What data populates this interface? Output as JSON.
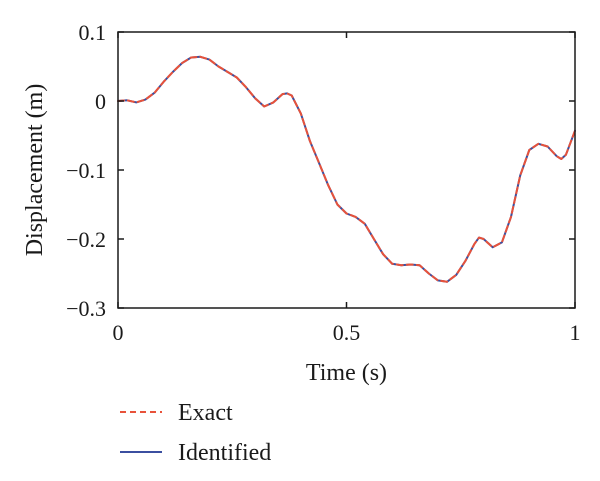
{
  "chart_data": {
    "type": "line",
    "xlabel": "Time (s)",
    "ylabel": "Displacement (m)",
    "xlim": [
      0,
      1
    ],
    "ylim": [
      -0.3,
      0.1
    ],
    "xticks": [
      0,
      0.5,
      1
    ],
    "xtick_labels": [
      "0",
      "0.5",
      "1"
    ],
    "yticks": [
      0.1,
      0,
      -0.1,
      -0.2,
      -0.3
    ],
    "ytick_labels": [
      "0.1",
      "0",
      "−0.1",
      "−0.2",
      "−0.3"
    ],
    "grid": false,
    "legend_position": "bottom",
    "series": [
      {
        "name": "Exact",
        "style": "dashed",
        "color": "#e8523a",
        "x": [
          0,
          0.02,
          0.04,
          0.06,
          0.08,
          0.1,
          0.12,
          0.14,
          0.16,
          0.18,
          0.2,
          0.22,
          0.24,
          0.26,
          0.28,
          0.3,
          0.32,
          0.34,
          0.36,
          0.37,
          0.38,
          0.4,
          0.42,
          0.44,
          0.46,
          0.48,
          0.5,
          0.52,
          0.54,
          0.56,
          0.58,
          0.6,
          0.62,
          0.64,
          0.66,
          0.68,
          0.7,
          0.72,
          0.74,
          0.76,
          0.78,
          0.79,
          0.8,
          0.82,
          0.84,
          0.86,
          0.88,
          0.9,
          0.92,
          0.94,
          0.96,
          0.97,
          0.98,
          1.0
        ],
        "y": [
          0.0,
          0.001,
          -0.002,
          0.002,
          0.012,
          0.028,
          0.042,
          0.055,
          0.063,
          0.064,
          0.06,
          0.05,
          0.042,
          0.034,
          0.02,
          0.004,
          -0.008,
          -0.002,
          0.01,
          0.011,
          0.008,
          -0.018,
          -0.058,
          -0.09,
          -0.122,
          -0.15,
          -0.163,
          -0.168,
          -0.178,
          -0.2,
          -0.222,
          -0.236,
          -0.238,
          -0.237,
          -0.238,
          -0.25,
          -0.26,
          -0.262,
          -0.252,
          -0.232,
          -0.207,
          -0.198,
          -0.2,
          -0.212,
          -0.205,
          -0.168,
          -0.108,
          -0.071,
          -0.062,
          -0.066,
          -0.08,
          -0.084,
          -0.078,
          -0.043
        ]
      },
      {
        "name": "Identified",
        "style": "solid",
        "color": "#3b4fa0",
        "x": [
          0,
          0.02,
          0.04,
          0.06,
          0.08,
          0.1,
          0.12,
          0.14,
          0.16,
          0.18,
          0.2,
          0.22,
          0.24,
          0.26,
          0.28,
          0.3,
          0.32,
          0.34,
          0.36,
          0.37,
          0.38,
          0.4,
          0.42,
          0.44,
          0.46,
          0.48,
          0.5,
          0.52,
          0.54,
          0.56,
          0.58,
          0.6,
          0.62,
          0.64,
          0.66,
          0.68,
          0.7,
          0.72,
          0.74,
          0.76,
          0.78,
          0.79,
          0.8,
          0.82,
          0.84,
          0.86,
          0.88,
          0.9,
          0.92,
          0.94,
          0.96,
          0.97,
          0.98,
          1.0
        ],
        "y": [
          0.0,
          0.001,
          -0.002,
          0.002,
          0.012,
          0.028,
          0.042,
          0.055,
          0.063,
          0.064,
          0.06,
          0.05,
          0.042,
          0.034,
          0.02,
          0.004,
          -0.008,
          -0.002,
          0.01,
          0.011,
          0.008,
          -0.018,
          -0.058,
          -0.09,
          -0.122,
          -0.15,
          -0.163,
          -0.168,
          -0.178,
          -0.2,
          -0.222,
          -0.236,
          -0.238,
          -0.237,
          -0.238,
          -0.25,
          -0.26,
          -0.262,
          -0.252,
          -0.232,
          -0.207,
          -0.198,
          -0.2,
          -0.212,
          -0.205,
          -0.168,
          -0.108,
          -0.071,
          -0.062,
          -0.066,
          -0.08,
          -0.084,
          -0.078,
          -0.043
        ]
      }
    ]
  }
}
